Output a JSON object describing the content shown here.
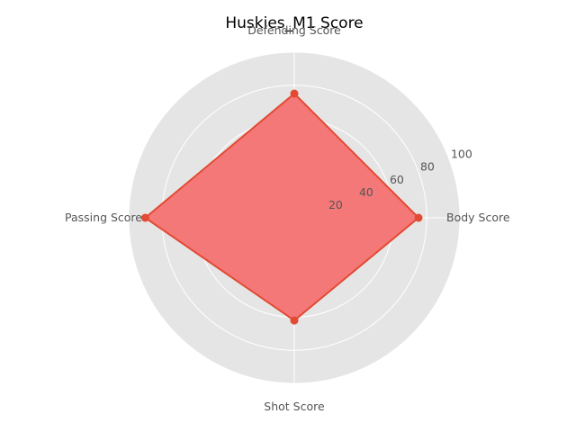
{
  "chart_data": {
    "type": "radar",
    "title": "Huskies_M1 Score",
    "categories": [
      "Body Score",
      "Defending Score",
      "Passing Score",
      "Shot Score"
    ],
    "series": [
      {
        "values": [
          75,
          75,
          90,
          62
        ]
      }
    ],
    "rlim": [
      0,
      100
    ],
    "rticks": [
      20,
      40,
      60,
      80,
      100
    ],
    "rtick_labels": [
      "20",
      "40",
      "60",
      "80",
      "100"
    ],
    "grid": true,
    "colors": {
      "background": "#e5e5e5",
      "grid": "#ffffff",
      "line": "#e24a33",
      "fill": "#f47272"
    }
  }
}
